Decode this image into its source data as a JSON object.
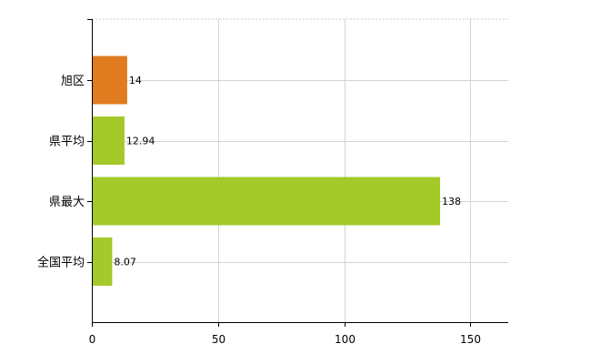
{
  "chart_data": {
    "type": "bar",
    "orientation": "horizontal",
    "categories": [
      "旭区",
      "県平均",
      "県最大",
      "全国平均"
    ],
    "values": [
      14,
      12.94,
      138,
      8.07
    ],
    "value_labels": [
      "14",
      "12.94",
      "138",
      "8.07"
    ],
    "bar_colors": [
      "#e07b20",
      "#a3c92a",
      "#a3c92a",
      "#a3c92a"
    ],
    "xlim": [
      0,
      165
    ],
    "xticks": [
      0,
      50,
      100,
      150
    ],
    "xtick_labels": [
      "0",
      "50",
      "100",
      "150"
    ],
    "grid": true
  }
}
